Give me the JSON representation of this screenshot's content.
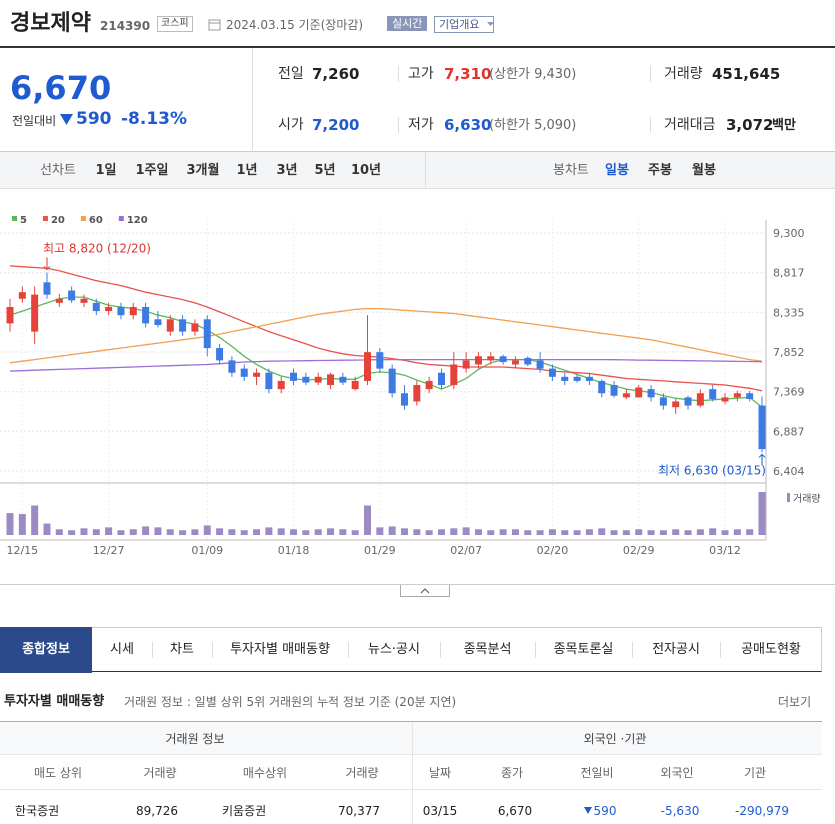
{
  "header": {
    "name": "경보제약",
    "code": "214390",
    "market": "코스피",
    "date": "2024.03.15 기준(장마감)",
    "realtime": "실시간",
    "company": "기업개요"
  },
  "quote": {
    "price": "6,670",
    "change_label": "전일대비",
    "change": "590",
    "rate": "-8.13%",
    "stats": [
      {
        "label": "전일",
        "value": "7,260"
      },
      {
        "label": "고가",
        "value": "7,310",
        "note": "(상한가 9,430)"
      },
      {
        "label": "거래량",
        "value": "451,645"
      },
      {
        "label": "시가",
        "value": "7,200"
      },
      {
        "label": "저가",
        "value": "6,630",
        "note": "(하한가 5,090)"
      },
      {
        "label": "거래대금",
        "value": "3,072",
        "unit": "백만"
      }
    ]
  },
  "chart_tabs": {
    "line_label": "선차트",
    "periods": [
      "1일",
      "1주일",
      "3개월",
      "1년",
      "3년",
      "5년",
      "10년"
    ],
    "candle_label": "봉차트",
    "candle_periods": [
      "일봉",
      "주봉",
      "월봉"
    ]
  },
  "chart": {
    "type": "candlestick",
    "legend": [
      {
        "name": "5",
        "color": "#5cb85c"
      },
      {
        "name": "20",
        "color": "#e8534a"
      },
      {
        "name": "60",
        "color": "#f0a050"
      },
      {
        "name": "120",
        "color": "#9b6fd6"
      }
    ],
    "ylim": [
      6404,
      9300
    ],
    "yticks": [
      {
        "value": 9300,
        "label": "9,300"
      },
      {
        "value": 8817,
        "label": "8,817"
      },
      {
        "value": 8335,
        "label": "8,335"
      },
      {
        "value": 7852,
        "label": "7,852"
      },
      {
        "value": 7369,
        "label": "7,369"
      },
      {
        "value": 6887,
        "label": "6,887"
      },
      {
        "value": 6404,
        "label": "6,404"
      }
    ],
    "high_label": "최고 8,820 (12/20)",
    "low_label": "최저 6,630 (03/15)",
    "volume_label": "거래량",
    "dates": [
      null,
      "12/15",
      null,
      null,
      null,
      null,
      null,
      null,
      "12/27",
      null,
      null,
      null,
      null,
      null,
      null,
      null,
      "01/09",
      null,
      null,
      null,
      null,
      null,
      null,
      "01/18",
      null,
      null,
      null,
      null,
      null,
      null,
      "01/29",
      null,
      null,
      null,
      null,
      null,
      null,
      "02/07",
      null,
      null,
      null,
      null,
      null,
      null,
      "02/20",
      null,
      null,
      null,
      null,
      null,
      null,
      "02/29",
      null,
      null,
      null,
      null,
      null,
      null,
      "03/12",
      null,
      null,
      null
    ],
    "candles": [
      {
        "o": 8200,
        "h": 8500,
        "l": 8100,
        "c": 8400
      },
      {
        "o": 8500,
        "h": 8650,
        "l": 8450,
        "c": 8580
      },
      {
        "o": 8100,
        "h": 8650,
        "l": 7950,
        "c": 8550
      },
      {
        "o": 8700,
        "h": 8820,
        "l": 8500,
        "c": 8550
      },
      {
        "o": 8450,
        "h": 8560,
        "l": 8400,
        "c": 8500
      },
      {
        "o": 8600,
        "h": 8650,
        "l": 8450,
        "c": 8480
      },
      {
        "o": 8450,
        "h": 8550,
        "l": 8400,
        "c": 8500
      },
      {
        "o": 8450,
        "h": 8500,
        "l": 8300,
        "c": 8350
      },
      {
        "o": 8350,
        "h": 8450,
        "l": 8300,
        "c": 8400
      },
      {
        "o": 8400,
        "h": 8450,
        "l": 8250,
        "c": 8300
      },
      {
        "o": 8300,
        "h": 8450,
        "l": 8250,
        "c": 8400
      },
      {
        "o": 8400,
        "h": 8450,
        "l": 8150,
        "c": 8200
      },
      {
        "o": 8250,
        "h": 8350,
        "l": 8150,
        "c": 8180
      },
      {
        "o": 8100,
        "h": 8300,
        "l": 8050,
        "c": 8250
      },
      {
        "o": 8250,
        "h": 8300,
        "l": 8050,
        "c": 8100
      },
      {
        "o": 8100,
        "h": 8250,
        "l": 8050,
        "c": 8200
      },
      {
        "o": 8250,
        "h": 8300,
        "l": 7800,
        "c": 7900
      },
      {
        "o": 7900,
        "h": 7950,
        "l": 7700,
        "c": 7750
      },
      {
        "o": 7750,
        "h": 7800,
        "l": 7550,
        "c": 7600
      },
      {
        "o": 7650,
        "h": 7700,
        "l": 7500,
        "c": 7550
      },
      {
        "o": 7550,
        "h": 7650,
        "l": 7450,
        "c": 7600
      },
      {
        "o": 7600,
        "h": 7650,
        "l": 7350,
        "c": 7400
      },
      {
        "o": 7400,
        "h": 7550,
        "l": 7350,
        "c": 7500
      },
      {
        "o": 7600,
        "h": 7650,
        "l": 7450,
        "c": 7500
      },
      {
        "o": 7550,
        "h": 7600,
        "l": 7450,
        "c": 7480
      },
      {
        "o": 7480,
        "h": 7600,
        "l": 7450,
        "c": 7550
      },
      {
        "o": 7450,
        "h": 7600,
        "l": 7400,
        "c": 7580
      },
      {
        "o": 7550,
        "h": 7600,
        "l": 7450,
        "c": 7480
      },
      {
        "o": 7400,
        "h": 7550,
        "l": 7380,
        "c": 7500
      },
      {
        "o": 7500,
        "h": 8300,
        "l": 7450,
        "c": 7850
      },
      {
        "o": 7850,
        "h": 7900,
        "l": 7600,
        "c": 7650
      },
      {
        "o": 7650,
        "h": 7700,
        "l": 7300,
        "c": 7350
      },
      {
        "o": 7350,
        "h": 7450,
        "l": 7150,
        "c": 7200
      },
      {
        "o": 7250,
        "h": 7500,
        "l": 7200,
        "c": 7450
      },
      {
        "o": 7400,
        "h": 7550,
        "l": 7350,
        "c": 7500
      },
      {
        "o": 7600,
        "h": 7650,
        "l": 7400,
        "c": 7450
      },
      {
        "o": 7450,
        "h": 7850,
        "l": 7400,
        "c": 7700
      },
      {
        "o": 7650,
        "h": 7850,
        "l": 7600,
        "c": 7750
      },
      {
        "o": 7700,
        "h": 7850,
        "l": 7650,
        "c": 7800
      },
      {
        "o": 7750,
        "h": 7850,
        "l": 7700,
        "c": 7800
      },
      {
        "o": 7800,
        "h": 7820,
        "l": 7700,
        "c": 7730
      },
      {
        "o": 7700,
        "h": 7800,
        "l": 7650,
        "c": 7750
      },
      {
        "o": 7780,
        "h": 7800,
        "l": 7680,
        "c": 7700
      },
      {
        "o": 7750,
        "h": 7850,
        "l": 7600,
        "c": 7650
      },
      {
        "o": 7650,
        "h": 7700,
        "l": 7500,
        "c": 7550
      },
      {
        "o": 7550,
        "h": 7600,
        "l": 7450,
        "c": 7500
      },
      {
        "o": 7550,
        "h": 7580,
        "l": 7480,
        "c": 7500
      },
      {
        "o": 7550,
        "h": 7600,
        "l": 7450,
        "c": 7500
      },
      {
        "o": 7500,
        "h": 7520,
        "l": 7300,
        "c": 7350
      },
      {
        "o": 7450,
        "h": 7500,
        "l": 7300,
        "c": 7320
      },
      {
        "o": 7300,
        "h": 7400,
        "l": 7280,
        "c": 7350
      },
      {
        "o": 7300,
        "h": 7450,
        "l": 7300,
        "c": 7420
      },
      {
        "o": 7400,
        "h": 7450,
        "l": 7250,
        "c": 7300
      },
      {
        "o": 7300,
        "h": 7350,
        "l": 7150,
        "c": 7200
      },
      {
        "o": 7180,
        "h": 7280,
        "l": 7100,
        "c": 7250
      },
      {
        "o": 7300,
        "h": 7320,
        "l": 7150,
        "c": 7200
      },
      {
        "o": 7200,
        "h": 7400,
        "l": 7180,
        "c": 7350
      },
      {
        "o": 7400,
        "h": 7450,
        "l": 7250,
        "c": 7280
      },
      {
        "o": 7250,
        "h": 7350,
        "l": 7220,
        "c": 7300
      },
      {
        "o": 7300,
        "h": 7380,
        "l": 7250,
        "c": 7350
      },
      {
        "o": 7350,
        "h": 7380,
        "l": 7250,
        "c": 7280
      },
      {
        "o": 7200,
        "h": 7310,
        "l": 6630,
        "c": 6670
      }
    ],
    "volumes": [
      230000,
      220000,
      310000,
      120000,
      60000,
      50000,
      70000,
      60000,
      80000,
      50000,
      60000,
      90000,
      80000,
      60000,
      50000,
      60000,
      100000,
      70000,
      60000,
      50000,
      60000,
      80000,
      70000,
      60000,
      50000,
      60000,
      70000,
      60000,
      50000,
      310000,
      80000,
      90000,
      70000,
      60000,
      50000,
      60000,
      70000,
      80000,
      60000,
      50000,
      60000,
      60000,
      50000,
      50000,
      60000,
      50000,
      50000,
      60000,
      70000,
      50000,
      50000,
      60000,
      50000,
      50000,
      60000,
      50000,
      60000,
      70000,
      50000,
      60000,
      60000,
      451645
    ],
    "ma": [
      [
        8300,
        8350,
        8400,
        8450,
        8500,
        8520,
        8520,
        8470,
        8420,
        8400,
        8380,
        8350,
        8300,
        8270,
        8220,
        8190,
        8120,
        8030,
        7920,
        7800,
        7700,
        7620,
        7560,
        7530,
        7510,
        7520,
        7530,
        7520,
        7520,
        7590,
        7610,
        7600,
        7570,
        7510,
        7460,
        7400,
        7460,
        7530,
        7640,
        7720,
        7760,
        7760,
        7760,
        7730,
        7680,
        7630,
        7580,
        7530,
        7480,
        7440,
        7400,
        7380,
        7360,
        7320,
        7290,
        7270,
        7260,
        7270,
        7280,
        7290,
        7300,
        7180
      ],
      [
        8900,
        8890,
        8880,
        8870,
        8840,
        8800,
        8760,
        8720,
        8690,
        8660,
        8620,
        8580,
        8550,
        8520,
        8490,
        8450,
        8400,
        8340,
        8280,
        8220,
        8160,
        8100,
        8050,
        8000,
        7950,
        7900,
        7860,
        7830,
        7810,
        7800,
        7790,
        7770,
        7750,
        7720,
        7700,
        7690,
        7680,
        7670,
        7670,
        7670,
        7670,
        7660,
        7650,
        7640,
        7620,
        7610,
        7600,
        7590,
        7570,
        7550,
        7530,
        7520,
        7510,
        7500,
        7490,
        7480,
        7470,
        7460,
        7450,
        7430,
        7410,
        7380
      ],
      [
        7720,
        7740,
        7760,
        7780,
        7800,
        7820,
        7840,
        7860,
        7880,
        7900,
        7920,
        7940,
        7960,
        7980,
        8000,
        8020,
        8040,
        8070,
        8100,
        8130,
        8160,
        8190,
        8220,
        8250,
        8280,
        8310,
        8330,
        8350,
        8370,
        8380,
        8380,
        8370,
        8360,
        8350,
        8340,
        8330,
        8320,
        8300,
        8280,
        8260,
        8240,
        8220,
        8200,
        8180,
        8160,
        8140,
        8120,
        8100,
        8080,
        8060,
        8040,
        8020,
        8000,
        7970,
        7940,
        7910,
        7880,
        7850,
        7820,
        7790,
        7760,
        7740
      ],
      [
        7620,
        7625,
        7630,
        7635,
        7640,
        7645,
        7650,
        7655,
        7660,
        7665,
        7670,
        7675,
        7680,
        7685,
        7690,
        7695,
        7700,
        7710,
        7720,
        7730,
        7735,
        7740,
        7742,
        7744,
        7746,
        7748,
        7750,
        7752,
        7754,
        7756,
        7758,
        7760,
        7760,
        7760,
        7760,
        7760,
        7760,
        7760,
        7760,
        7760,
        7760,
        7760,
        7760,
        7760,
        7760,
        7760,
        7760,
        7760,
        7760,
        7758,
        7756,
        7754,
        7752,
        7750,
        7748,
        7746,
        7744,
        7742,
        7740,
        7738,
        7736,
        7734
      ]
    ],
    "up_color": "#e5433a",
    "down_color": "#3d7be3"
  },
  "tabs": [
    "종합정보",
    "시세",
    "차트",
    "투자자별 매매동향",
    "뉴스·공시",
    "종목분석",
    "종목토론실",
    "전자공시",
    "공매도현황"
  ],
  "section": {
    "title": "투자자별 매매동향",
    "desc": "거래원 정보 : 일별 상위 5위 거래원의 누적 정보 기준 (20분 지연)",
    "more": "더보기"
  },
  "table": {
    "groups": [
      "거래원 정보",
      "외국인 ·기관"
    ],
    "columns": [
      "매도 상위",
      "거래량",
      "매수상위",
      "거래량",
      "날짜",
      "종가",
      "전일비",
      "외국인",
      "기관"
    ],
    "rows": [
      [
        "한국증권",
        "89,726",
        "키움증권",
        "70,377",
        "03/15",
        "6,670",
        "590",
        "-5,630",
        "-290,979"
      ]
    ]
  }
}
